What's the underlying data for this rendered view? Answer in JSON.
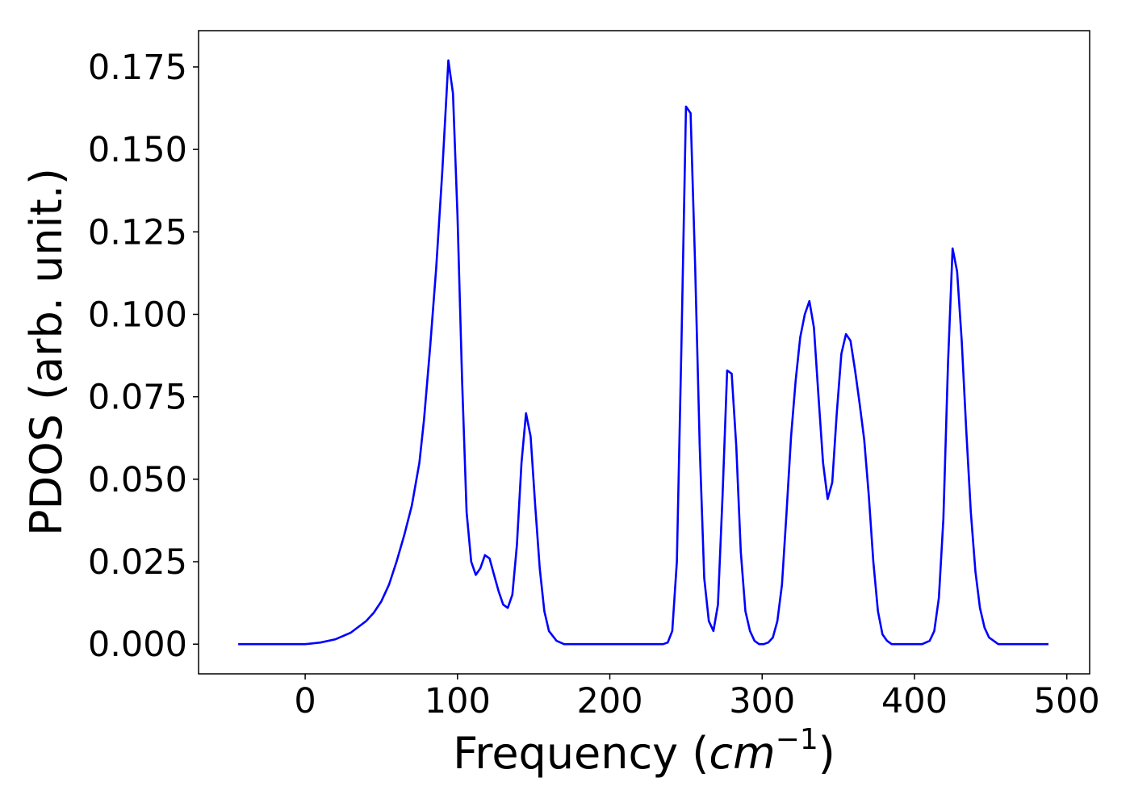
{
  "chart_data": {
    "type": "line",
    "title": "",
    "xlabel": "Frequency (",
    "xlabel_math": "cm",
    "xlabel_sup": "−1",
    "xlabel_close": ")",
    "ylabel": "PDOS (arb. unit.)",
    "xlim": [
      -70,
      515
    ],
    "ylim": [
      -0.009,
      0.186
    ],
    "grid": false,
    "legend": "none",
    "xticks": [
      0,
      100,
      200,
      300,
      400,
      500
    ],
    "xtick_labels": [
      "0",
      "100",
      "200",
      "300",
      "400",
      "500"
    ],
    "yticks": [
      0,
      0.025,
      0.05,
      0.075,
      0.1,
      0.125,
      0.15,
      0.175
    ],
    "ytick_labels": [
      "0.000",
      "0.025",
      "0.050",
      "0.075",
      "0.100",
      "0.125",
      "0.150",
      "0.175"
    ],
    "series": [
      {
        "color": "#0000ff",
        "x": [
          -44,
          -20,
          0,
          10,
          20,
          30,
          40,
          45,
          50,
          55,
          60,
          65,
          70,
          75,
          78,
          82,
          86,
          90,
          92,
          94,
          97,
          100,
          103,
          106,
          109,
          112,
          115,
          118,
          121,
          124,
          127,
          130,
          133,
          136,
          139,
          142,
          145,
          148,
          151,
          154,
          157,
          160,
          165,
          170,
          180,
          200,
          220,
          235,
          238,
          241,
          244,
          247,
          250,
          253,
          256,
          259,
          262,
          265,
          268,
          271,
          274,
          277,
          280,
          283,
          286,
          289,
          292,
          295,
          298,
          301,
          304,
          307,
          310,
          313,
          316,
          319,
          322,
          325,
          328,
          331,
          334,
          337,
          340,
          343,
          346,
          349,
          352,
          355,
          358,
          361,
          364,
          367,
          370,
          373,
          376,
          379,
          382,
          385,
          390,
          400,
          405,
          410,
          413,
          416,
          419,
          422,
          425,
          428,
          431,
          434,
          437,
          440,
          443,
          446,
          449,
          452,
          455,
          460,
          470,
          488
        ],
        "y": [
          0,
          0,
          0,
          0.0005,
          0.0015,
          0.0035,
          0.007,
          0.0095,
          0.013,
          0.018,
          0.025,
          0.033,
          0.042,
          0.055,
          0.068,
          0.09,
          0.114,
          0.143,
          0.16,
          0.177,
          0.167,
          0.13,
          0.08,
          0.04,
          0.025,
          0.021,
          0.023,
          0.027,
          0.026,
          0.021,
          0.016,
          0.012,
          0.011,
          0.015,
          0.03,
          0.055,
          0.07,
          0.063,
          0.042,
          0.023,
          0.01,
          0.004,
          0.001,
          0,
          0,
          0,
          0,
          0,
          0.0005,
          0.004,
          0.025,
          0.09,
          0.163,
          0.161,
          0.115,
          0.06,
          0.02,
          0.007,
          0.004,
          0.012,
          0.045,
          0.083,
          0.082,
          0.06,
          0.028,
          0.01,
          0.004,
          0.001,
          0,
          0,
          0.0005,
          0.002,
          0.007,
          0.018,
          0.04,
          0.063,
          0.08,
          0.093,
          0.1,
          0.104,
          0.096,
          0.075,
          0.055,
          0.044,
          0.049,
          0.07,
          0.088,
          0.094,
          0.092,
          0.083,
          0.073,
          0.062,
          0.045,
          0.025,
          0.01,
          0.003,
          0.001,
          0,
          0,
          0,
          0,
          0.001,
          0.004,
          0.014,
          0.038,
          0.085,
          0.12,
          0.113,
          0.092,
          0.065,
          0.04,
          0.022,
          0.011,
          0.005,
          0.002,
          0.001,
          0,
          0,
          0,
          0
        ]
      }
    ]
  }
}
